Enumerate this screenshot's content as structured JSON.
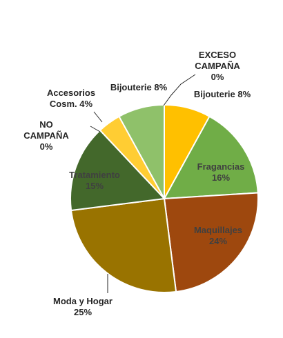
{
  "chart_data": {
    "type": "pie",
    "title": "",
    "start_angle_deg": 0,
    "direction": "clockwise",
    "slices": [
      {
        "label": "EXCESO CAMPAÑA",
        "lines": [
          "EXCESO",
          "CAMPAÑA",
          "0%"
        ],
        "value": 0,
        "color": "#E8B800"
      },
      {
        "label": "Bijouterie",
        "lines": [
          "Bijouterie 8%"
        ],
        "value": 8,
        "color": "#FFC000"
      },
      {
        "label": "Fragancias",
        "lines": [
          "Fragancias",
          "16%"
        ],
        "value": 16,
        "color": "#70AD47"
      },
      {
        "label": "Maquillajes",
        "lines": [
          "Maquillajes",
          "24%"
        ],
        "value": 24,
        "color": "#9E480E"
      },
      {
        "label": "Moda y Hogar",
        "lines": [
          "Moda y Hogar",
          "25%"
        ],
        "value": 25,
        "color": "#997300"
      },
      {
        "label": "Tratamiento",
        "lines": [
          "Tratamiento",
          "15%"
        ],
        "value": 15,
        "color": "#43682B"
      },
      {
        "label": "NO CAMPAÑA",
        "lines": [
          "NO",
          "CAMPAÑA",
          "0%"
        ],
        "value": 0,
        "color": "#264478"
      },
      {
        "label": "Accesorios Cosm.",
        "lines": [
          "Accesorios",
          "Cosm. 4%"
        ],
        "value": 4,
        "color": "#FFCD33"
      },
      {
        "label": "Bijouterie",
        "lines": [
          "Bijouterie 8%"
        ],
        "value": 8,
        "color": "#8FC16A"
      }
    ]
  }
}
